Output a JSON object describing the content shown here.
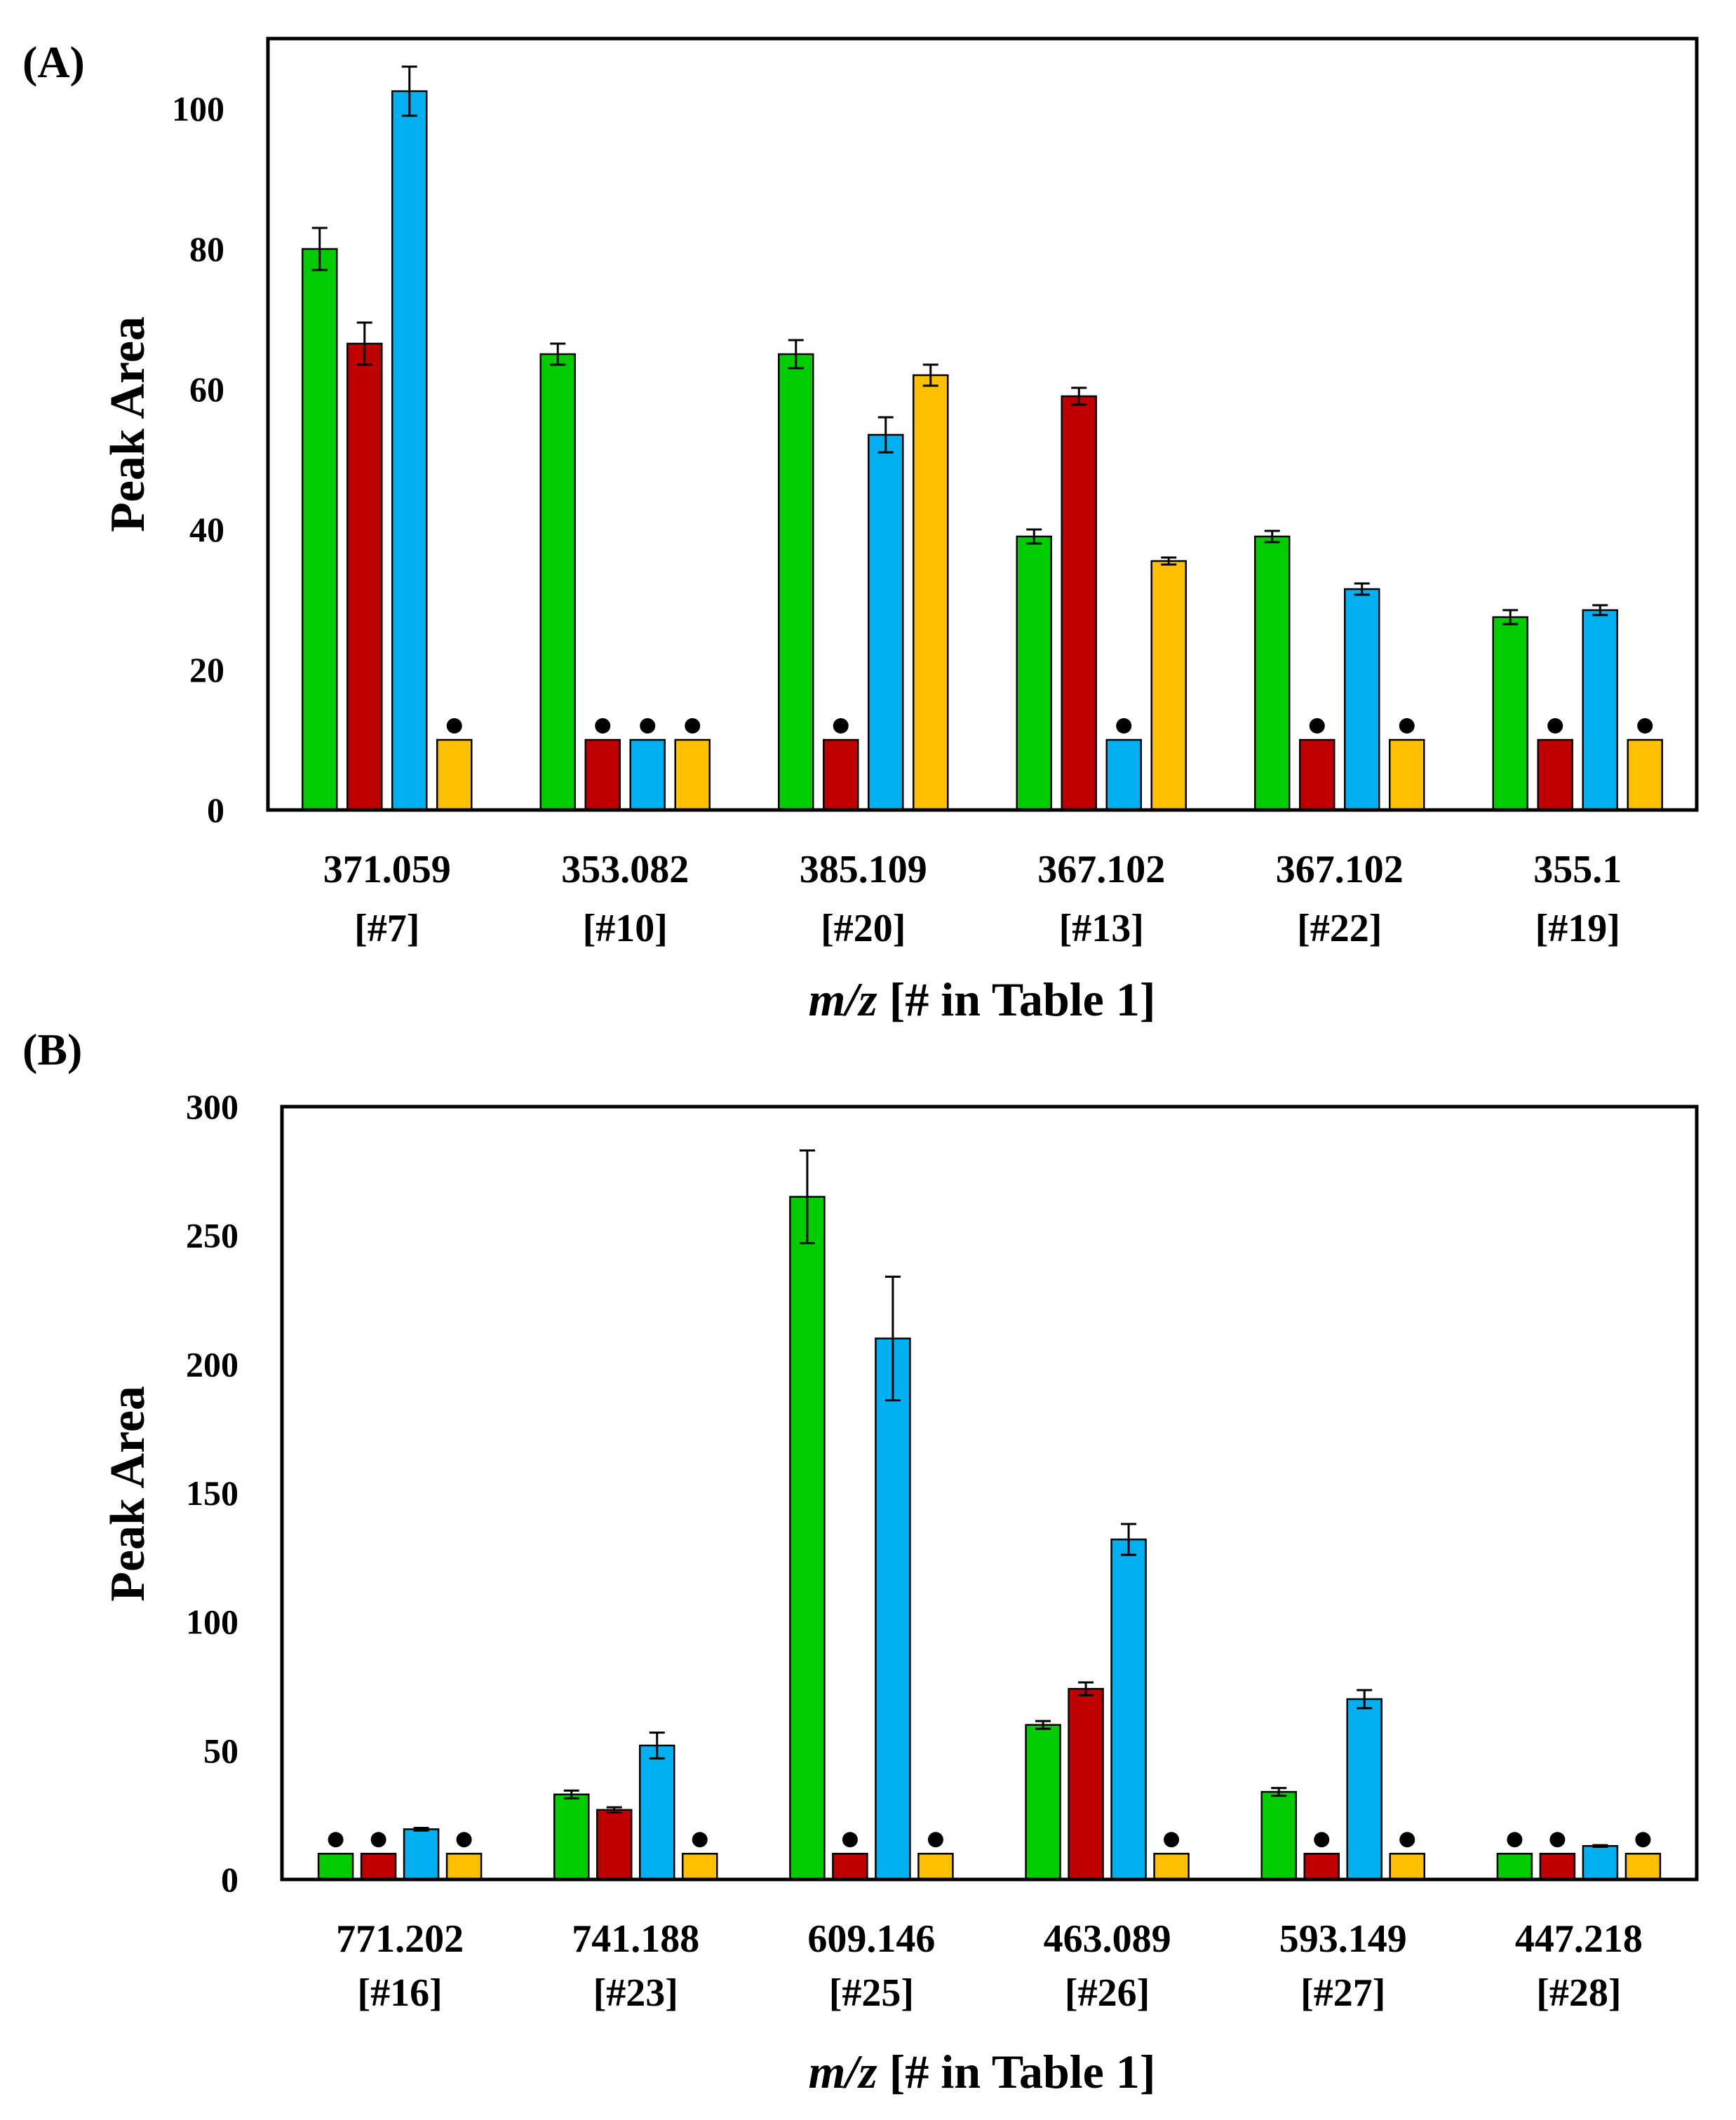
{
  "chart_data": [
    {
      "type": "bar",
      "panel_label": "(A)",
      "ylabel": "Peak Area",
      "xlabel_italic": "m/z",
      "xlabel_rest": "[# in Table 1]",
      "ylim": [
        0,
        110
      ],
      "yticks": [
        0,
        20,
        40,
        60,
        80,
        100
      ],
      "categories": [
        {
          "mz": "371.059",
          "id": "[#7]"
        },
        {
          "mz": "353.082",
          "id": "[#10]"
        },
        {
          "mz": "385.109",
          "id": "[#20]"
        },
        {
          "mz": "367.102",
          "id": "[#13]"
        },
        {
          "mz": "367.102",
          "id": "[#22]"
        },
        {
          "mz": "355.1",
          "id": "[#19]"
        }
      ],
      "series": [
        {
          "name": "green",
          "color": "#00cc00",
          "values": [
            80,
            65,
            65,
            39,
            39,
            27.5
          ],
          "errors": [
            3,
            1.5,
            2,
            1,
            0.8,
            1
          ],
          "nd": [
            false,
            false,
            false,
            false,
            false,
            false
          ]
        },
        {
          "name": "red",
          "color": "#c00000",
          "values": [
            66.5,
            10,
            10,
            59,
            10,
            10
          ],
          "errors": [
            3,
            0,
            0,
            1.2,
            0,
            0
          ],
          "nd": [
            false,
            true,
            true,
            false,
            true,
            true
          ]
        },
        {
          "name": "blue",
          "color": "#00b0f0",
          "values": [
            102.5,
            10,
            53.5,
            10,
            31.5,
            28.5
          ],
          "errors": [
            3.5,
            0,
            2.5,
            0,
            0.8,
            0.7
          ],
          "nd": [
            false,
            true,
            false,
            true,
            false,
            false
          ]
        },
        {
          "name": "orange",
          "color": "#ffc000",
          "values": [
            10,
            10,
            62,
            35.5,
            10,
            10
          ],
          "errors": [
            0,
            0,
            1.5,
            0.5,
            0,
            0
          ],
          "nd": [
            true,
            true,
            false,
            false,
            true,
            true
          ]
        }
      ]
    },
    {
      "type": "bar",
      "panel_label": "(B)",
      "ylabel": "Peak Area",
      "xlabel_italic": "m/z",
      "xlabel_rest": "[# in Table 1]",
      "ylim": [
        0,
        300
      ],
      "yticks": [
        0,
        50,
        100,
        150,
        200,
        250,
        300
      ],
      "categories": [
        {
          "mz": "771.202",
          "id": "[#16]"
        },
        {
          "mz": "741.188",
          "id": "[#23]"
        },
        {
          "mz": "609.146",
          "id": "[#25]"
        },
        {
          "mz": "463.089",
          "id": "[#26]"
        },
        {
          "mz": "593.149",
          "id": "[#27]"
        },
        {
          "mz": "447.218",
          "id": "[#28]"
        }
      ],
      "series": [
        {
          "name": "green",
          "color": "#00cc00",
          "values": [
            10,
            33,
            265,
            60,
            34,
            10
          ],
          "errors": [
            0,
            1.5,
            18,
            1.5,
            1.5,
            0
          ],
          "nd": [
            true,
            false,
            false,
            false,
            false,
            true
          ]
        },
        {
          "name": "red",
          "color": "#c00000",
          "values": [
            10,
            27,
            10,
            74,
            10,
            10
          ],
          "errors": [
            0,
            1,
            0,
            2.5,
            0,
            0
          ],
          "nd": [
            true,
            false,
            true,
            false,
            true,
            true
          ]
        },
        {
          "name": "blue",
          "color": "#00b0f0",
          "values": [
            19.5,
            52,
            210,
            132,
            70,
            13
          ],
          "errors": [
            0.5,
            5,
            24,
            6,
            3.5,
            0.3
          ],
          "nd": [
            false,
            false,
            false,
            false,
            false,
            false
          ]
        },
        {
          "name": "orange",
          "color": "#ffc000",
          "values": [
            10,
            10,
            10,
            10,
            10,
            10
          ],
          "errors": [
            0,
            0,
            0,
            0,
            0,
            0
          ],
          "nd": [
            true,
            true,
            true,
            true,
            true,
            true
          ]
        }
      ]
    }
  ]
}
